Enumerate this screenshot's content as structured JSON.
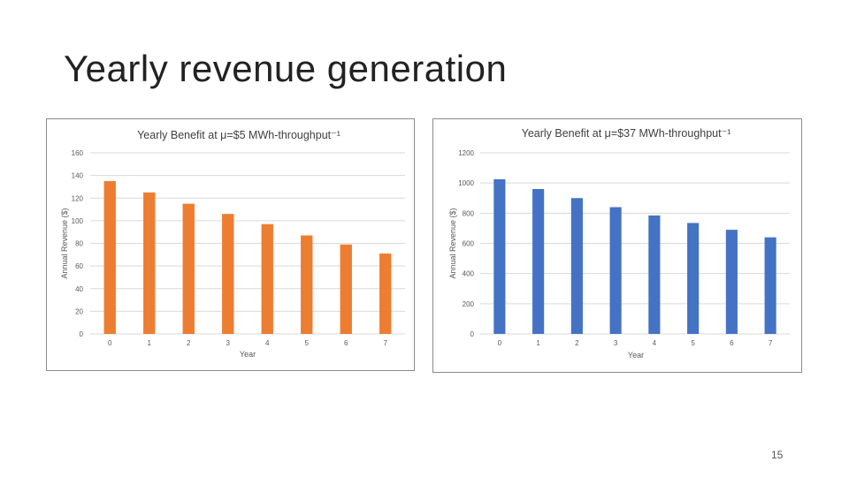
{
  "slide": {
    "title": "Yearly revenue generation",
    "page_number": "15"
  },
  "chart_data": [
    {
      "type": "bar",
      "title": "Yearly Benefit at μ=$5 MWh-throughput⁻¹",
      "xlabel": "Year",
      "ylabel": "Annual Revenue ($)",
      "categories": [
        "0",
        "1",
        "2",
        "3",
        "4",
        "5",
        "6",
        "7"
      ],
      "values": [
        135,
        125,
        115,
        106,
        97,
        87,
        79,
        71
      ],
      "ylim": [
        0,
        160
      ],
      "yticks": [
        "0",
        "20",
        "40",
        "60",
        "80",
        "100",
        "120",
        "140",
        "160"
      ],
      "color": "#ED7D31",
      "grid": true
    },
    {
      "type": "bar",
      "title": "Yearly Benefit at μ=$37 MWh-throughput⁻¹",
      "xlabel": "Year",
      "ylabel": "Annual Revenue ($)",
      "categories": [
        "0",
        "1",
        "2",
        "3",
        "4",
        "5",
        "6",
        "7"
      ],
      "values": [
        1025,
        960,
        900,
        840,
        785,
        735,
        690,
        640
      ],
      "ylim": [
        0,
        1200
      ],
      "yticks": [
        "0",
        "200",
        "400",
        "600",
        "800",
        "1000",
        "1200"
      ],
      "color": "#4472C4",
      "grid": true
    }
  ]
}
